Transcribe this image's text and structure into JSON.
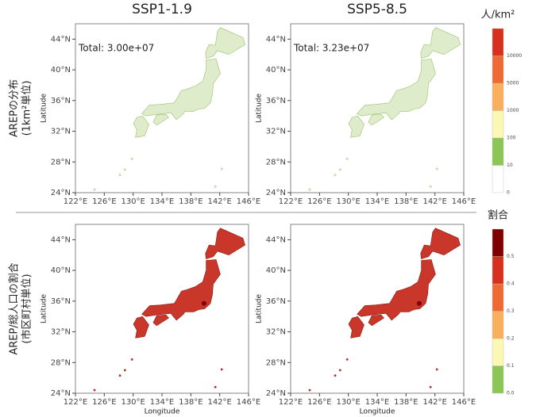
{
  "column_titles": [
    "SSP1-1.9",
    "SSP5-8.5"
  ],
  "lat_ticks": [
    "24°N",
    "28°N",
    "32°N",
    "36°N",
    "40°N",
    "44°N"
  ],
  "lon_ticks": [
    "122°E",
    "126°E",
    "130°E",
    "134°E",
    "138°E",
    "142°E",
    "146°E"
  ],
  "y_axis_label": "Latitude",
  "x_axis_label": "Longitude",
  "rows": [
    {
      "label_lines": [
        "AREPの分布",
        "(1km²単位)"
      ],
      "annotations": [
        "Total: 3.00e+07",
        "Total: 3.23e+07"
      ],
      "map_fill": "#dfeccb",
      "map_stroke": "#9bbf6a",
      "colorbar": {
        "title": "人/km²",
        "ticks": [
          "0",
          "10",
          "100",
          "1000",
          "5000",
          "10000"
        ],
        "colors": [
          "#ffffff",
          "#8cc657",
          "#fbf8b4",
          "#f8b05c",
          "#ef6a32",
          "#d7301f"
        ]
      }
    },
    {
      "label_lines": [
        "AREP/総人口の割合",
        "(市区町村単位)"
      ],
      "map_fill": "#c8372a",
      "map_stroke": "#8b1a12",
      "colorbar": {
        "title": "割合",
        "ticks": [
          "0.0",
          "0.1",
          "0.2",
          "0.3",
          "0.4",
          "0.5"
        ],
        "colors": [
          "#8cc657",
          "#fbf8b4",
          "#f8b05c",
          "#ef6a32",
          "#d7301f",
          "#7f0000"
        ]
      }
    }
  ]
}
